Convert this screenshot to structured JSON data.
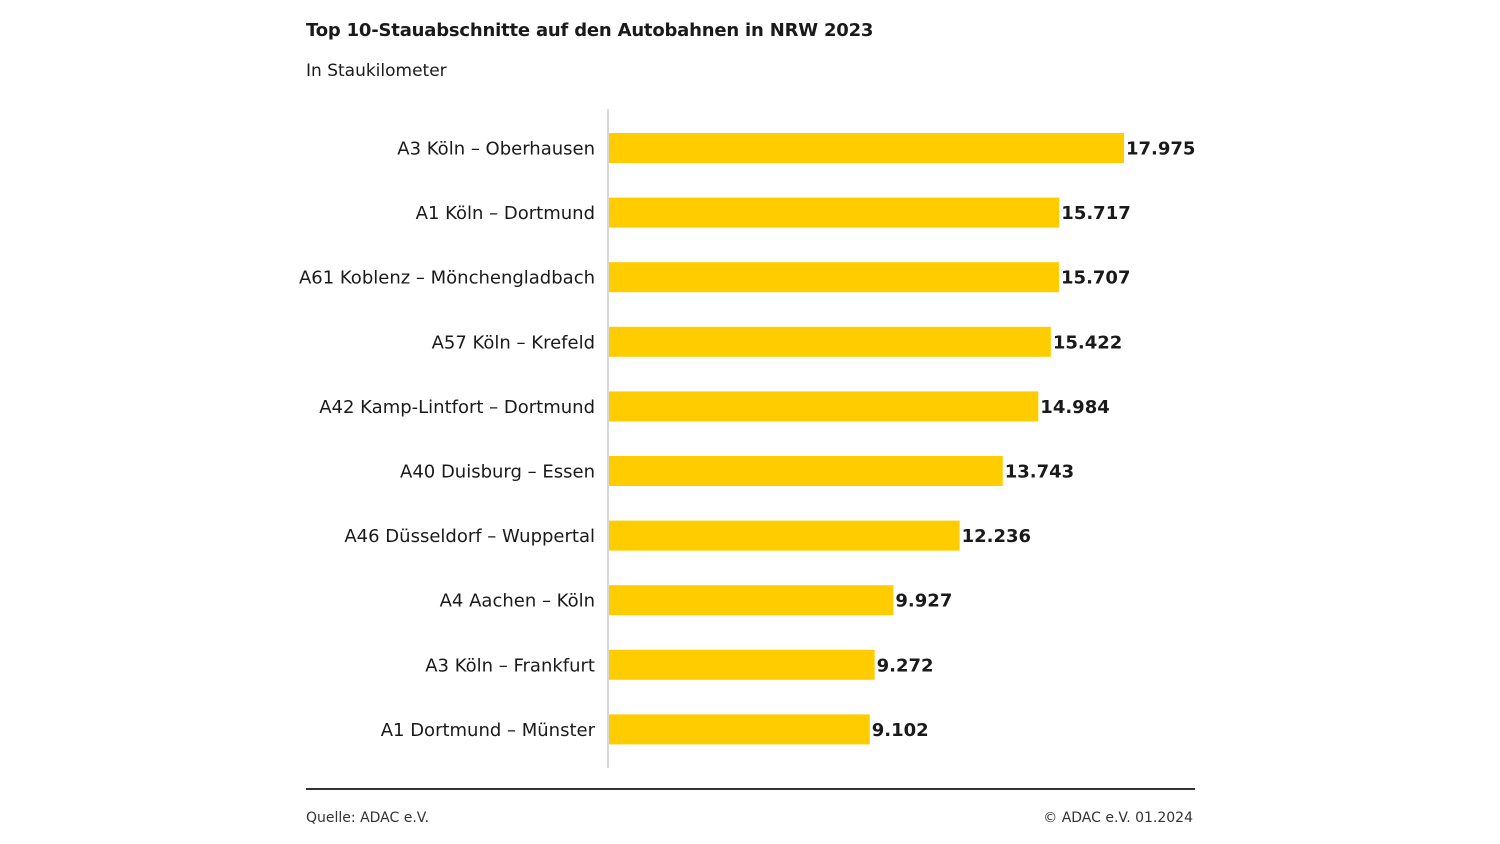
{
  "header": {
    "title": "Top 10-Stauabschnitte auf den Autobahnen in NRW 2023",
    "subtitle": "In Staukilometer"
  },
  "footer": {
    "source": "Quelle: ADAC e.V.",
    "copyright": "© ADAC e.V. 01.2024"
  },
  "colors": {
    "bar": "#FFCC00",
    "axis": "#cccccc",
    "text": "#1a1a1a"
  },
  "chart_data": {
    "type": "bar",
    "orientation": "horizontal",
    "title": "Top 10-Stauabschnitte auf den Autobahnen in NRW 2023",
    "subtitle": "In Staukilometer",
    "categories": [
      "A3 Köln – Oberhausen",
      "A1 Köln – Dortmund",
      "A61 Koblenz – Mönchengladbach",
      "A57 Köln – Krefeld",
      "A42 Kamp-Lintfort – Dortmund",
      "A40 Duisburg – Essen",
      "A46 Düsseldorf – Wuppertal",
      "A4 Aachen – Köln",
      "A3 Köln – Frankfurt",
      "A1 Dortmund – Münster"
    ],
    "values": [
      17975,
      15717,
      15707,
      15422,
      14984,
      13743,
      12236,
      9927,
      9272,
      9102
    ],
    "value_labels": [
      "17.975",
      "15.717",
      "15.707",
      "15.422",
      "14.984",
      "13.743",
      "12.236",
      "9.927",
      "9.272",
      "9.102"
    ],
    "xlim": [
      0,
      17975
    ],
    "grid": false,
    "legend": "none"
  }
}
